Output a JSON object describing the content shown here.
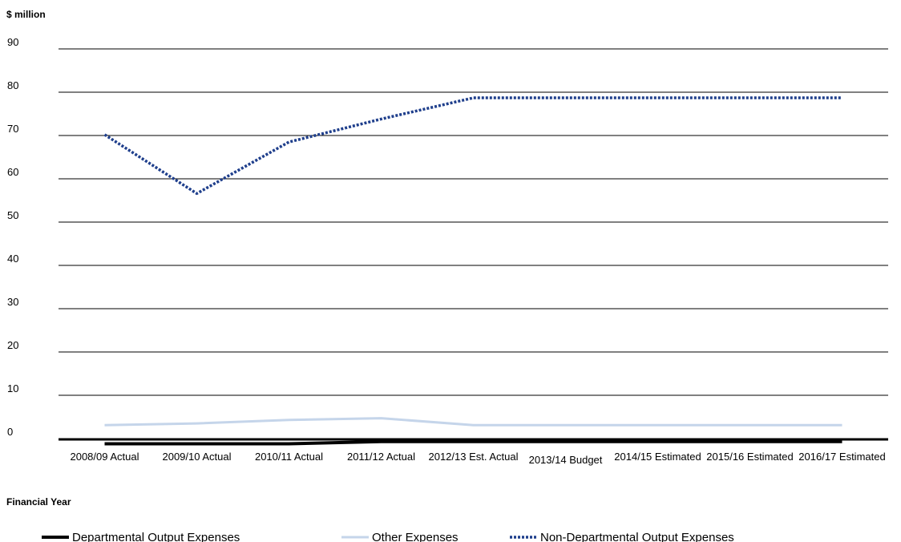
{
  "chart_data": {
    "type": "line",
    "ylabel": "$ million",
    "xlabel": "Financial Year",
    "ylim": [
      0,
      90
    ],
    "yticks": [
      0,
      10,
      20,
      30,
      40,
      50,
      60,
      70,
      80,
      90
    ],
    "grid": true,
    "legend_position": "bottom",
    "categories": [
      "2008/09 Actual",
      "2009/10 Actual",
      "2010/11 Actual",
      "2011/12 Actual",
      "2012/13 Est. Actual",
      "2013/14 Budget",
      "2014/15 Estimated",
      "2015/16 Estimated",
      "2016/17 Estimated"
    ],
    "series": [
      {
        "name": "Departmental Output Expenses",
        "values": [
          -1.2,
          -1.2,
          -1.2,
          -0.7,
          -0.7,
          -0.7,
          -0.7,
          -0.7,
          -0.7
        ],
        "color": "#000000",
        "style": "solid-thick"
      },
      {
        "name": "Other Expenses",
        "values": [
          3.1,
          3.5,
          4.3,
          4.7,
          3.1,
          3.1,
          3.1,
          3.1,
          3.1
        ],
        "color": "#c5d5ea",
        "style": "solid"
      },
      {
        "name": "Non-Departmental Output Expenses",
        "values": [
          70.2,
          56.6,
          68.5,
          73.8,
          78.7,
          78.7,
          78.7,
          78.7,
          78.7
        ],
        "color": "#1f3f8c",
        "style": "dotted"
      }
    ]
  }
}
